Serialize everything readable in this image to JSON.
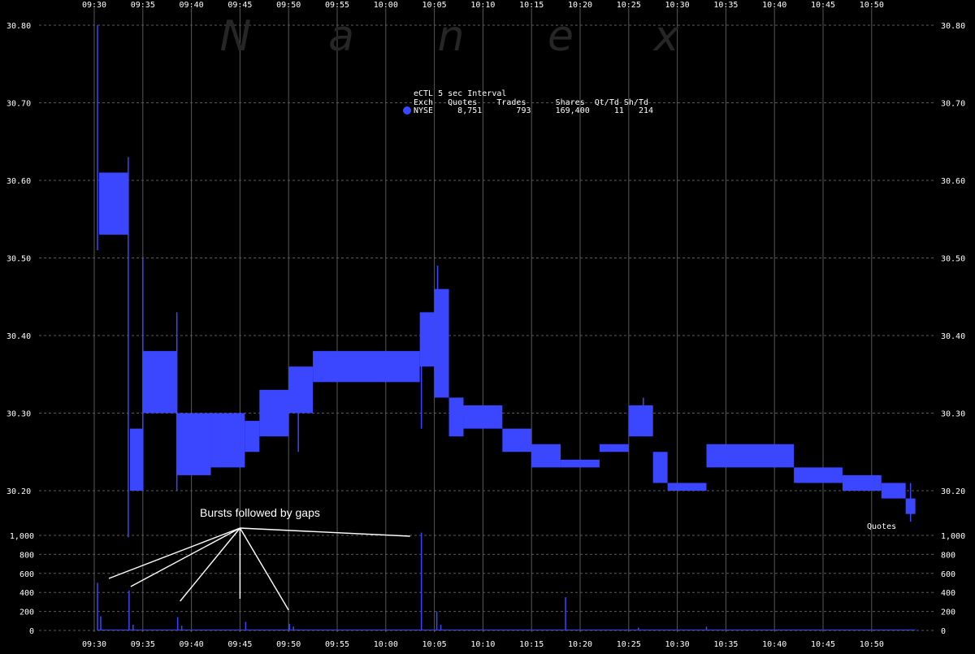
{
  "chart_data": [
    {
      "type": "area",
      "name": "price",
      "watermark_letters": [
        "N",
        "a",
        "n",
        "e",
        "x"
      ],
      "x_ticks": [
        "09:30",
        "09:35",
        "09:40",
        "09:45",
        "09:50",
        "09:55",
        "10:00",
        "10:05",
        "10:10",
        "10:15",
        "10:20",
        "10:25",
        "10:30",
        "10:35",
        "10:40",
        "10:45",
        "10:50"
      ],
      "ylim": [
        30.15,
        30.8
      ],
      "y_ticks": [
        "30.20",
        "30.30",
        "30.40",
        "30.50",
        "30.60",
        "30.70",
        "30.80"
      ],
      "grid": true,
      "legend": {
        "title": "eCTL 5 sec Interval",
        "header": "Exch   Quotes    Trades      Shares  Qt/Td Sh/Td",
        "row": "NYSE     8,751       793     169,400     11   214",
        "color": "#3a46ff"
      },
      "series_color": "#3a46ff",
      "bands": [
        {
          "x": [
            "09:30:30",
            "09:33:30"
          ],
          "low": 30.53,
          "high": 30.61
        },
        {
          "x": [
            "09:33:40",
            "09:35:00"
          ],
          "low": 30.2,
          "high": 30.28
        },
        {
          "x": [
            "09:35:00",
            "09:38:30"
          ],
          "low": 30.3,
          "high": 30.38
        },
        {
          "x": [
            "09:38:30",
            "09:42:00"
          ],
          "low": 30.22,
          "high": 30.3
        },
        {
          "x": [
            "09:42:00",
            "09:45:30"
          ],
          "low": 30.23,
          "high": 30.3
        },
        {
          "x": [
            "09:45:30",
            "09:47:00"
          ],
          "low": 30.25,
          "high": 30.29
        },
        {
          "x": [
            "09:47:00",
            "09:50:00"
          ],
          "low": 30.27,
          "high": 30.33
        },
        {
          "x": [
            "09:50:00",
            "09:52:30"
          ],
          "low": 30.3,
          "high": 30.36
        },
        {
          "x": [
            "09:52:30",
            "10:03:30"
          ],
          "low": 30.34,
          "high": 30.38
        },
        {
          "x": [
            "10:03:30",
            "10:05:00"
          ],
          "low": 30.36,
          "high": 30.43
        },
        {
          "x": [
            "10:05:00",
            "10:06:30"
          ],
          "low": 30.32,
          "high": 30.46
        },
        {
          "x": [
            "10:06:30",
            "10:08:00"
          ],
          "low": 30.27,
          "high": 30.32
        },
        {
          "x": [
            "10:08:00",
            "10:12:00"
          ],
          "low": 30.28,
          "high": 30.31
        },
        {
          "x": [
            "10:12:00",
            "10:15:00"
          ],
          "low": 30.25,
          "high": 30.28
        },
        {
          "x": [
            "10:15:00",
            "10:18:00"
          ],
          "low": 30.23,
          "high": 30.26
        },
        {
          "x": [
            "10:18:00",
            "10:22:00"
          ],
          "low": 30.23,
          "high": 30.24
        },
        {
          "x": [
            "10:22:00",
            "10:25:00"
          ],
          "low": 30.25,
          "high": 30.26
        },
        {
          "x": [
            "10:25:00",
            "10:27:30"
          ],
          "low": 30.27,
          "high": 30.31
        },
        {
          "x": [
            "10:27:30",
            "10:29:00"
          ],
          "low": 30.21,
          "high": 30.25
        },
        {
          "x": [
            "10:29:00",
            "10:33:00"
          ],
          "low": 30.2,
          "high": 30.21
        },
        {
          "x": [
            "10:33:00",
            "10:42:00"
          ],
          "low": 30.23,
          "high": 30.26
        },
        {
          "x": [
            "10:42:00",
            "10:47:00"
          ],
          "low": 30.21,
          "high": 30.23
        },
        {
          "x": [
            "10:47:00",
            "10:51:00"
          ],
          "low": 30.2,
          "high": 30.22
        },
        {
          "x": [
            "10:51:00",
            "10:53:30"
          ],
          "low": 30.19,
          "high": 30.21
        },
        {
          "x": [
            "10:53:30",
            "10:54:30"
          ],
          "low": 30.17,
          "high": 30.19
        }
      ],
      "spikes": [
        {
          "x": "09:30:20",
          "low": 30.51,
          "high": 30.8
        },
        {
          "x": "09:33:30",
          "low": 30.14,
          "high": 30.63
        },
        {
          "x": "09:35:00",
          "low": 30.2,
          "high": 30.5
        },
        {
          "x": "09:38:30",
          "low": 30.2,
          "high": 30.43
        },
        {
          "x": "09:51:00",
          "low": 30.25,
          "high": 30.33
        },
        {
          "x": "10:03:40",
          "low": 30.28,
          "high": 30.42
        },
        {
          "x": "10:05:20",
          "low": 30.35,
          "high": 30.49
        },
        {
          "x": "10:26:30",
          "low": 30.28,
          "high": 30.32
        },
        {
          "x": "10:54:00",
          "low": 30.16,
          "high": 30.21
        }
      ]
    },
    {
      "type": "bar",
      "name": "quotes",
      "label": "Quotes",
      "x_ticks": [
        "09:30",
        "09:35",
        "09:40",
        "09:45",
        "09:50",
        "09:55",
        "10:00",
        "10:05",
        "10:10",
        "10:15",
        "10:20",
        "10:25",
        "10:30",
        "10:35",
        "10:40",
        "10:45",
        "10:50"
      ],
      "ylim": [
        0,
        1000
      ],
      "y_ticks": [
        "0",
        "200",
        "400",
        "600",
        "800",
        "1,000"
      ],
      "bars": [
        {
          "x": "09:30:20",
          "value": 500
        },
        {
          "x": "09:30:40",
          "value": 150
        },
        {
          "x": "09:33:35",
          "value": 420
        },
        {
          "x": "09:34:00",
          "value": 60
        },
        {
          "x": "09:38:35",
          "value": 140
        },
        {
          "x": "09:39:00",
          "value": 50
        },
        {
          "x": "09:45:35",
          "value": 90
        },
        {
          "x": "09:50:05",
          "value": 70
        },
        {
          "x": "09:50:30",
          "value": 40
        },
        {
          "x": "10:03:40",
          "value": 1030
        },
        {
          "x": "10:05:15",
          "value": 200
        },
        {
          "x": "10:05:40",
          "value": 60
        },
        {
          "x": "10:18:30",
          "value": 350
        },
        {
          "x": "10:26:00",
          "value": 30
        },
        {
          "x": "10:33:00",
          "value": 40
        }
      ],
      "annotation": {
        "text": "Bursts followed by gaps",
        "origin": "09:45",
        "targets": [
          "09:31:30",
          "09:33:45",
          "09:38:50",
          "09:45",
          "09:50",
          "10:02:30"
        ]
      }
    }
  ]
}
